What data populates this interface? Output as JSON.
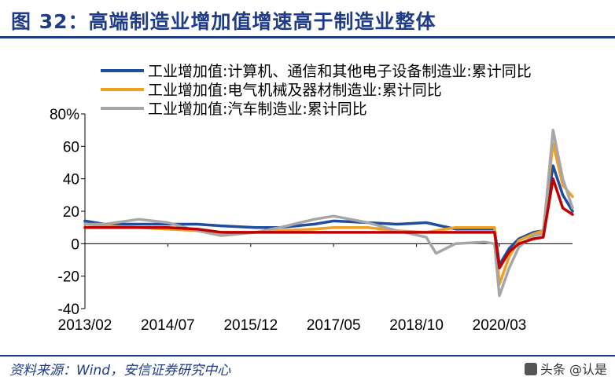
{
  "header": {
    "title": "图 32：高端制造业增加值增速高于制造业整体"
  },
  "footer": {
    "source": "资料来源：Wind，安信证券研究中心",
    "watermark": "头条 @认是"
  },
  "chart_data": {
    "type": "line",
    "title": "",
    "xlabel": "",
    "ylabel": "",
    "ylim": [
      -40,
      80
    ],
    "yticks": [
      "-40",
      "-20",
      "0",
      "20",
      "40",
      "60",
      "80%"
    ],
    "xtick_labels": [
      "2013/02",
      "2014/07",
      "2015/12",
      "2017/05",
      "2018/10",
      "2020/03"
    ],
    "x_range": [
      "2013/02",
      "2021/06"
    ],
    "grid": false,
    "legend_position": "top",
    "series": [
      {
        "name": "工业增加值:计算机、通信和其他电子设备制造业:累计同比",
        "color": "#1f4e9c",
        "points": [
          [
            "2013/02",
            14
          ],
          [
            "2013/06",
            12
          ],
          [
            "2014/01",
            12
          ],
          [
            "2014/07",
            12
          ],
          [
            "2015/01",
            12
          ],
          [
            "2015/06",
            11
          ],
          [
            "2016/01",
            10
          ],
          [
            "2016/06",
            10
          ],
          [
            "2017/01",
            12
          ],
          [
            "2017/05",
            14
          ],
          [
            "2017/12",
            13
          ],
          [
            "2018/06",
            12
          ],
          [
            "2018/12",
            13
          ],
          [
            "2019/06",
            9
          ],
          [
            "2019/12",
            9
          ],
          [
            "2020/02",
            9
          ],
          [
            "2020/03",
            -13
          ],
          [
            "2020/05",
            -3
          ],
          [
            "2020/07",
            3
          ],
          [
            "2020/10",
            7
          ],
          [
            "2020/12",
            8
          ],
          [
            "2021/02",
            48
          ],
          [
            "2021/04",
            30
          ],
          [
            "2021/06",
            20
          ]
        ]
      },
      {
        "name": "工业增加值:电气机械及器材制造业:累计同比",
        "color": "#f0a020",
        "points": [
          [
            "2013/02",
            10
          ],
          [
            "2013/06",
            11
          ],
          [
            "2014/01",
            10
          ],
          [
            "2014/07",
            9
          ],
          [
            "2015/01",
            8
          ],
          [
            "2015/06",
            7
          ],
          [
            "2016/01",
            7
          ],
          [
            "2016/06",
            8
          ],
          [
            "2017/01",
            9
          ],
          [
            "2017/05",
            10
          ],
          [
            "2017/12",
            10
          ],
          [
            "2018/06",
            8
          ],
          [
            "2018/12",
            7
          ],
          [
            "2019/06",
            10
          ],
          [
            "2019/12",
            10
          ],
          [
            "2020/02",
            10
          ],
          [
            "2020/03",
            -25
          ],
          [
            "2020/05",
            -8
          ],
          [
            "2020/07",
            2
          ],
          [
            "2020/10",
            6
          ],
          [
            "2020/12",
            8
          ],
          [
            "2021/02",
            62
          ],
          [
            "2021/04",
            36
          ],
          [
            "2021/06",
            29
          ]
        ]
      },
      {
        "name": "工业增加值:汽车制造业:累计同比",
        "color": "#a6a6a6",
        "points": [
          [
            "2013/02",
            12
          ],
          [
            "2013/06",
            12
          ],
          [
            "2014/01",
            15
          ],
          [
            "2014/07",
            13
          ],
          [
            "2015/01",
            8
          ],
          [
            "2015/06",
            5
          ],
          [
            "2016/01",
            7
          ],
          [
            "2016/06",
            10
          ],
          [
            "2017/01",
            15
          ],
          [
            "2017/05",
            17
          ],
          [
            "2017/12",
            13
          ],
          [
            "2018/06",
            8
          ],
          [
            "2018/12",
            4
          ],
          [
            "2019/02",
            -6
          ],
          [
            "2019/06",
            0
          ],
          [
            "2019/12",
            1
          ],
          [
            "2020/02",
            0
          ],
          [
            "2020/03",
            -32
          ],
          [
            "2020/05",
            -15
          ],
          [
            "2020/07",
            -2
          ],
          [
            "2020/10",
            5
          ],
          [
            "2020/12",
            6
          ],
          [
            "2021/02",
            70
          ],
          [
            "2021/04",
            40
          ],
          [
            "2021/06",
            22
          ]
        ]
      },
      {
        "name": "",
        "color": "#c00000",
        "points": [
          [
            "2013/02",
            10
          ],
          [
            "2013/06",
            10
          ],
          [
            "2014/01",
            10
          ],
          [
            "2014/07",
            10
          ],
          [
            "2015/01",
            9
          ],
          [
            "2015/06",
            7
          ],
          [
            "2016/01",
            7
          ],
          [
            "2016/06",
            7
          ],
          [
            "2017/01",
            7
          ],
          [
            "2017/05",
            7
          ],
          [
            "2017/12",
            7
          ],
          [
            "2018/06",
            7
          ],
          [
            "2018/12",
            7
          ],
          [
            "2019/06",
            7
          ],
          [
            "2019/12",
            7
          ],
          [
            "2020/02",
            7
          ],
          [
            "2020/03",
            -15
          ],
          [
            "2020/05",
            -5
          ],
          [
            "2020/07",
            0
          ],
          [
            "2020/10",
            3
          ],
          [
            "2020/12",
            4
          ],
          [
            "2021/02",
            40
          ],
          [
            "2021/04",
            22
          ],
          [
            "2021/06",
            18
          ]
        ]
      }
    ]
  }
}
